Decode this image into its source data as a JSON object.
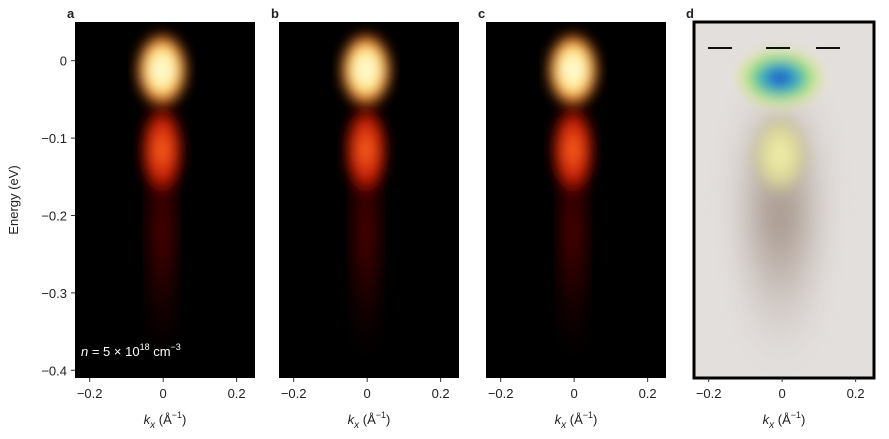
{
  "chart_data": [
    {
      "type": "image",
      "panel_label": "a",
      "colormap": "hot",
      "xlim": [
        -0.24,
        0.25
      ],
      "xticks": [
        {
          "value": -0.2,
          "label": "−0.2"
        },
        0,
        0.2
      ],
      "ylim": [
        -0.41,
        0.05
      ],
      "yticks": [
        0,
        {
          "value": -0.1,
          "label": "−0.1"
        },
        {
          "value": -0.2,
          "label": "−0.2"
        },
        {
          "value": -0.3,
          "label": "−0.3"
        },
        {
          "value": -0.4,
          "label": "−0.4"
        }
      ],
      "ylabel": "Energy (eV)",
      "xlabel": {
        "symbol": "k",
        "subscript": "x",
        "unit_open": "(Å",
        "exponent": "−1",
        "unit_close": ")"
      },
      "annotation": {
        "symbol": "n",
        "text": " = 5 × 10",
        "exponent": "18",
        "unit": " cm",
        "unit_exponent": "−3"
      }
    },
    {
      "type": "image",
      "panel_label": "b",
      "colormap": "hot",
      "xlim": [
        -0.24,
        0.25
      ],
      "xticks": [
        {
          "value": -0.2,
          "label": "−0.2"
        },
        0,
        0.2
      ],
      "ylim": [
        -0.41,
        0.05
      ],
      "xlabel": {
        "symbol": "k",
        "subscript": "x",
        "unit_open": "(Å",
        "exponent": "−1",
        "unit_close": ")"
      }
    },
    {
      "type": "image",
      "panel_label": "c",
      "colormap": "hot",
      "xlim": [
        -0.24,
        0.25
      ],
      "xticks": [
        {
          "value": -0.2,
          "label": "−0.2"
        },
        0,
        0.2
      ],
      "ylim": [
        -0.41,
        0.05
      ],
      "xlabel": {
        "symbol": "k",
        "subscript": "x",
        "unit_open": "(Å",
        "exponent": "−1",
        "unit_close": ")"
      }
    },
    {
      "type": "image",
      "panel_label": "d",
      "colormap": "spectral",
      "xlim": [
        -0.24,
        0.25
      ],
      "xticks": [
        {
          "value": -0.2,
          "label": "−0.2"
        },
        0,
        0.2
      ],
      "ylim": [
        -0.41,
        0.05
      ],
      "xlabel": {
        "symbol": "k",
        "subscript": "x",
        "unit_open": "(Å",
        "exponent": "−1",
        "unit_close": ")"
      }
    }
  ]
}
